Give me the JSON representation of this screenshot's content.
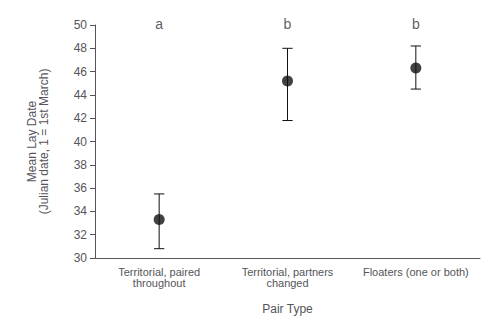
{
  "chart_data": {
    "type": "scatter",
    "categories": [
      "Territorial, paired\nthroughout",
      "Territorial, partners\nchanged",
      "Floaters (one or both)"
    ],
    "values": [
      33.3,
      45.2,
      46.3
    ],
    "errors_lower": [
      2.5,
      3.4,
      1.8
    ],
    "errors_upper": [
      2.2,
      2.8,
      1.9
    ],
    "annotations": [
      "a",
      "b",
      "b"
    ],
    "annotation_y": 49.3,
    "xlabel": "Pair Type",
    "ylabel": "Mean Lay Date\n(Julian date, 1 = 1st March)",
    "ylim": [
      30,
      50
    ],
    "yticks": [
      30,
      32,
      34,
      36,
      38,
      40,
      42,
      44,
      46,
      48,
      50
    ],
    "color": "#111111",
    "marker": "circle",
    "grid": false
  }
}
